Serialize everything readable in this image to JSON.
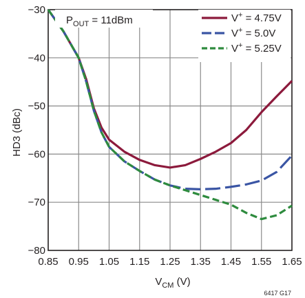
{
  "chart_data": {
    "type": "line",
    "ylabel": "HD3 (dBc)",
    "xlabel_main": "V",
    "xlabel_sub": "CM",
    "xlabel_unit": " (V)",
    "annotation": {
      "main": "P",
      "sub": "OUT",
      "rest": " = 11dBm"
    },
    "figure_id": "6417 G17",
    "xlim": [
      0.85,
      1.65
    ],
    "ylim": [
      -80,
      -30
    ],
    "x_ticks": [
      "0.85",
      "0.95",
      "1.05",
      "1.15",
      "1.25",
      "1.35",
      "1.45",
      "1.55",
      "1.65"
    ],
    "y_ticks": [
      "−30",
      "−40",
      "−50",
      "−60",
      "−70",
      "−80"
    ],
    "grid": true,
    "legend_position": "top-right",
    "series": [
      {
        "name": "V+ = 4.75V",
        "legend": {
          "main": "V",
          "sup": "+",
          "rest": " = 4.75V"
        },
        "color": "#8c1a3c",
        "dash": "solid",
        "points": [
          [
            0.85,
            -30
          ],
          [
            0.9,
            -34.5
          ],
          [
            0.95,
            -40
          ],
          [
            0.975,
            -44.5
          ],
          [
            1.0,
            -50.5
          ],
          [
            1.025,
            -54.5
          ],
          [
            1.05,
            -57
          ],
          [
            1.1,
            -59.5
          ],
          [
            1.15,
            -61.2
          ],
          [
            1.2,
            -62.3
          ],
          [
            1.25,
            -62.8
          ],
          [
            1.3,
            -62.3
          ],
          [
            1.35,
            -61
          ],
          [
            1.4,
            -59.5
          ],
          [
            1.45,
            -57.7
          ],
          [
            1.5,
            -55
          ],
          [
            1.55,
            -51.3
          ],
          [
            1.6,
            -48
          ],
          [
            1.65,
            -44.8
          ]
        ]
      },
      {
        "name": "V+ = 5.0V",
        "legend": {
          "main": "V",
          "sup": "+",
          "rest": " = 5.0V"
        },
        "color": "#3a55a4",
        "dash": "long-dash",
        "points": [
          [
            0.85,
            -30
          ],
          [
            0.9,
            -34.5
          ],
          [
            0.95,
            -40
          ],
          [
            0.975,
            -45
          ],
          [
            1.0,
            -51
          ],
          [
            1.025,
            -55.5
          ],
          [
            1.05,
            -58.5
          ],
          [
            1.1,
            -61.5
          ],
          [
            1.15,
            -63.5
          ],
          [
            1.2,
            -65.3
          ],
          [
            1.25,
            -66.5
          ],
          [
            1.3,
            -67.2
          ],
          [
            1.35,
            -67.3
          ],
          [
            1.4,
            -67.2
          ],
          [
            1.45,
            -66.8
          ],
          [
            1.5,
            -66.3
          ],
          [
            1.55,
            -65.5
          ],
          [
            1.6,
            -63.7
          ],
          [
            1.65,
            -60.3
          ]
        ]
      },
      {
        "name": "V+ = 5.25V",
        "legend": {
          "main": "V",
          "sup": "+",
          "rest": " = 5.25V"
        },
        "color": "#2e8b3e",
        "dash": "short-dash",
        "points": [
          [
            0.85,
            -30
          ],
          [
            0.9,
            -34.5
          ],
          [
            0.95,
            -40
          ],
          [
            0.975,
            -45
          ],
          [
            1.0,
            -51
          ],
          [
            1.025,
            -55.5
          ],
          [
            1.05,
            -58.5
          ],
          [
            1.1,
            -61.5
          ],
          [
            1.15,
            -63.5
          ],
          [
            1.2,
            -65.3
          ],
          [
            1.25,
            -66.5
          ],
          [
            1.3,
            -67.5
          ],
          [
            1.35,
            -68.5
          ],
          [
            1.4,
            -69.5
          ],
          [
            1.45,
            -70.5
          ],
          [
            1.5,
            -72.2
          ],
          [
            1.55,
            -73.5
          ],
          [
            1.6,
            -72.7
          ],
          [
            1.65,
            -70.7
          ]
        ]
      }
    ]
  }
}
